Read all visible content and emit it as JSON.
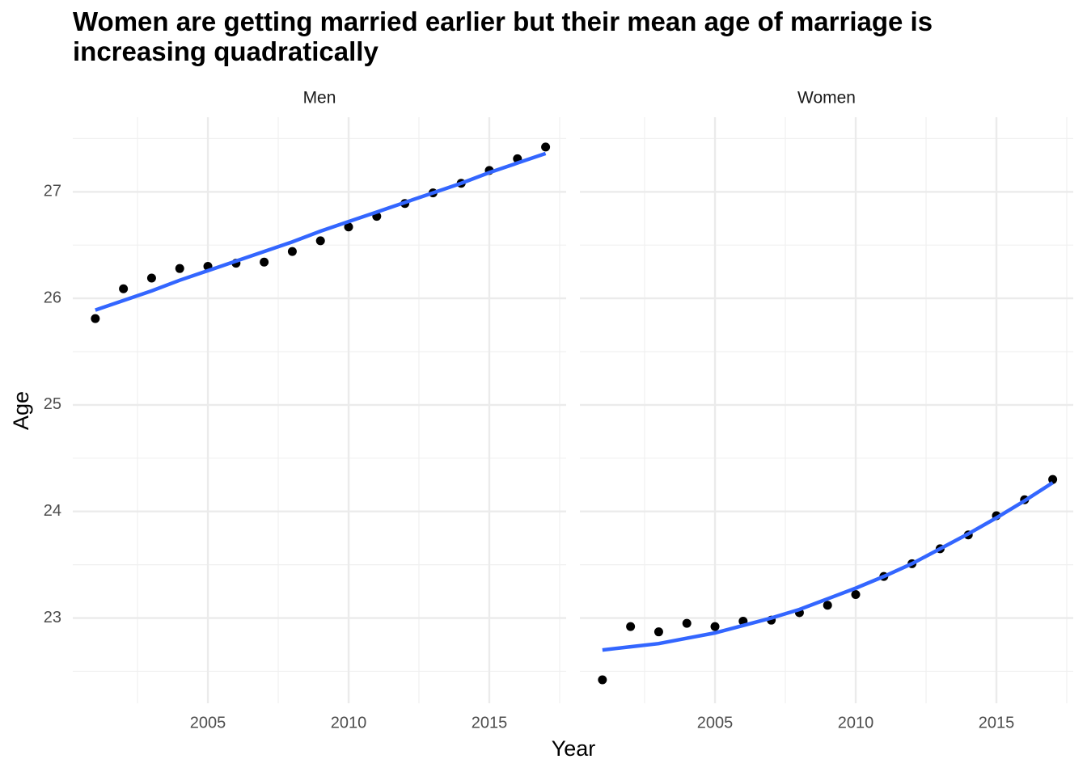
{
  "chart_data": {
    "type": "scatter",
    "title": "Women are getting married earlier but their mean age of marriage is increasing quadratically",
    "xlabel": "Year",
    "ylabel": "Age",
    "xlim": [
      2000.2,
      2017.73
    ],
    "xticks": [
      2005,
      2010,
      2015
    ],
    "xminor": [
      2002.5,
      2007.5,
      2012.5,
      2017.5
    ],
    "ylim": [
      22.2,
      27.7
    ],
    "yticks": [
      23,
      24,
      25,
      26,
      27
    ],
    "yminor": [
      22.5,
      23.5,
      24.5,
      25.5,
      26.5,
      27.5
    ],
    "grid": true,
    "point_color": "#000000",
    "fit_color": "#3366ff",
    "facets": [
      {
        "name": "Men",
        "x": [
          2001,
          2002,
          2003,
          2004,
          2005,
          2006,
          2007,
          2008,
          2009,
          2010,
          2011,
          2012,
          2013,
          2014,
          2015,
          2016,
          2017
        ],
        "values": [
          25.81,
          26.09,
          26.19,
          26.28,
          26.3,
          26.33,
          26.34,
          26.44,
          26.54,
          26.67,
          26.77,
          26.89,
          26.99,
          27.08,
          27.2,
          27.31,
          27.42
        ],
        "fit": [
          25.89,
          25.98,
          26.07,
          26.17,
          26.26,
          26.35,
          26.44,
          26.53,
          26.63,
          26.72,
          26.81,
          26.9,
          26.99,
          27.08,
          27.18,
          27.27,
          27.36
        ]
      },
      {
        "name": "Women",
        "x": [
          2001,
          2002,
          2003,
          2004,
          2005,
          2006,
          2007,
          2008,
          2009,
          2010,
          2011,
          2012,
          2013,
          2014,
          2015,
          2016,
          2017
        ],
        "values": [
          22.42,
          22.92,
          22.87,
          22.95,
          22.92,
          22.97,
          22.98,
          23.05,
          23.12,
          23.22,
          23.39,
          23.51,
          23.65,
          23.78,
          23.96,
          24.11,
          24.3
        ],
        "fit": [
          22.7,
          22.73,
          22.76,
          22.81,
          22.86,
          22.93,
          23.0,
          23.08,
          23.18,
          23.28,
          23.39,
          23.51,
          23.65,
          23.79,
          23.94,
          24.1,
          24.27
        ]
      }
    ]
  }
}
